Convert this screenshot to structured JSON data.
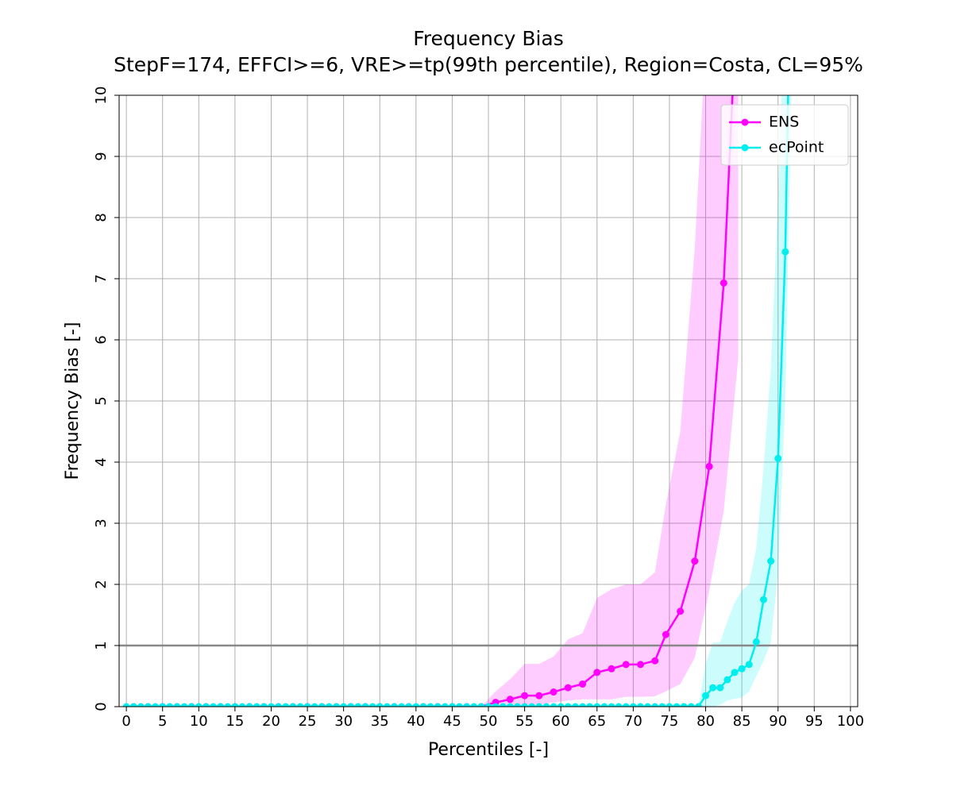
{
  "chart_data": {
    "type": "line",
    "title": "Frequency Bias",
    "subtitle": "StepF=174, EFFCI>=6, VRE>=tp(99th percentile), Region=Costa, CL=95%",
    "x_label": "Percentiles [-]",
    "y_label": "Frequency Bias [-]",
    "xlim": [
      -1,
      101
    ],
    "ylim": [
      0,
      10
    ],
    "xticks": [
      0,
      5,
      10,
      15,
      20,
      25,
      30,
      35,
      40,
      45,
      50,
      55,
      60,
      65,
      70,
      75,
      80,
      85,
      90,
      95,
      100
    ],
    "yticks": [
      0,
      1,
      2,
      3,
      4,
      5,
      6,
      7,
      8,
      9,
      10
    ],
    "grid": true,
    "legend": "upper right",
    "hline": 1,
    "hline_color": "#888888",
    "series": [
      {
        "name": "ENS",
        "color": "#ff00ff",
        "x": [
          1,
          3,
          5,
          7,
          9,
          11,
          13,
          15,
          17,
          19,
          21,
          23,
          25,
          27,
          29,
          31,
          33,
          35,
          37,
          39,
          41,
          43,
          45,
          47,
          49,
          51,
          53,
          55,
          57,
          59,
          61,
          63,
          65,
          67,
          69,
          71,
          73,
          74.5,
          76.5,
          78.5,
          80.5,
          82.5,
          84.5
        ],
        "values": [
          0,
          0,
          0,
          0,
          0,
          0,
          0,
          0,
          0,
          0,
          0,
          0,
          0,
          0,
          0,
          0,
          0,
          0,
          0,
          0,
          0,
          0,
          0,
          0,
          0,
          0.07,
          0.12,
          0.18,
          0.18,
          0.24,
          0.31,
          0.37,
          0.56,
          0.62,
          0.69,
          0.69,
          0.75,
          1.18,
          1.56,
          2.38,
          3.93,
          6.93,
          12
        ],
        "lower": [
          0,
          0,
          0,
          0,
          0,
          0,
          0,
          0,
          0,
          0,
          0,
          0,
          0,
          0,
          0,
          0,
          0,
          0,
          0,
          0,
          0,
          0,
          0,
          0,
          0,
          0,
          0,
          0.03,
          0.03,
          0.07,
          0.1,
          0.12,
          0.12,
          0.12,
          0.16,
          0.16,
          0.17,
          0.25,
          0.37,
          0.8,
          1.9,
          3.2,
          5.7
        ],
        "upper": [
          0,
          0,
          0,
          0,
          0,
          0,
          0,
          0,
          0,
          0,
          0,
          0,
          0,
          0,
          0,
          0,
          0,
          0,
          0,
          0,
          0,
          0,
          0,
          0,
          0,
          0.25,
          0.45,
          0.7,
          0.7,
          0.82,
          1.1,
          1.2,
          1.78,
          1.92,
          2.0,
          2.0,
          2.2,
          3.3,
          4.5,
          7.5,
          12,
          15,
          20
        ]
      },
      {
        "name": "ecPoint",
        "color": "#00eeee",
        "x": [
          0,
          1,
          2,
          3,
          4,
          5,
          6,
          7,
          8,
          9,
          10,
          11,
          12,
          13,
          14,
          15,
          16,
          17,
          18,
          19,
          20,
          21,
          22,
          23,
          24,
          25,
          26,
          27,
          28,
          29,
          30,
          31,
          32,
          33,
          34,
          35,
          36,
          37,
          38,
          39,
          40,
          41,
          42,
          43,
          44,
          45,
          46,
          47,
          48,
          49,
          50,
          51,
          52,
          53,
          54,
          55,
          56,
          57,
          58,
          59,
          60,
          61,
          62,
          63,
          64,
          65,
          66,
          67,
          68,
          69,
          70,
          71,
          72,
          73,
          74,
          75,
          76,
          77,
          78,
          79,
          80,
          81,
          82,
          83,
          84,
          85,
          86,
          87,
          88,
          89,
          90,
          91,
          92
        ],
        "values": [
          0,
          0,
          0,
          0,
          0,
          0,
          0,
          0,
          0,
          0,
          0,
          0,
          0,
          0,
          0,
          0,
          0,
          0,
          0,
          0,
          0,
          0,
          0,
          0,
          0,
          0,
          0,
          0,
          0,
          0,
          0,
          0,
          0,
          0,
          0,
          0,
          0,
          0,
          0,
          0,
          0,
          0,
          0,
          0,
          0,
          0,
          0,
          0,
          0,
          0,
          0,
          0,
          0,
          0,
          0,
          0,
          0,
          0,
          0,
          0,
          0,
          0,
          0,
          0,
          0,
          0,
          0,
          0,
          0,
          0,
          0,
          0,
          0,
          0,
          0,
          0,
          0,
          0,
          0,
          0,
          0.18,
          0.31,
          0.31,
          0.44,
          0.56,
          0.62,
          0.69,
          1.06,
          1.75,
          2.38,
          4.06,
          7.44,
          14
        ],
        "lower": [
          0,
          0,
          0,
          0,
          0,
          0,
          0,
          0,
          0,
          0,
          0,
          0,
          0,
          0,
          0,
          0,
          0,
          0,
          0,
          0,
          0,
          0,
          0,
          0,
          0,
          0,
          0,
          0,
          0,
          0,
          0,
          0,
          0,
          0,
          0,
          0,
          0,
          0,
          0,
          0,
          0,
          0,
          0,
          0,
          0,
          0,
          0,
          0,
          0,
          0,
          0,
          0,
          0,
          0,
          0,
          0,
          0,
          0,
          0,
          0,
          0,
          0,
          0,
          0,
          0,
          0,
          0,
          0,
          0,
          0,
          0,
          0,
          0,
          0,
          0,
          0,
          0,
          0,
          0,
          0,
          0,
          0,
          0.03,
          0.1,
          0.13,
          0.15,
          0.25,
          0.5,
          0.75,
          1.05,
          2.2,
          5.0,
          11
        ],
        "upper": [
          0,
          0,
          0,
          0,
          0,
          0,
          0,
          0,
          0,
          0,
          0,
          0,
          0,
          0,
          0,
          0,
          0,
          0,
          0,
          0,
          0,
          0,
          0,
          0,
          0,
          0,
          0,
          0,
          0,
          0,
          0,
          0,
          0,
          0,
          0,
          0,
          0,
          0,
          0,
          0,
          0,
          0,
          0,
          0,
          0,
          0,
          0,
          0,
          0,
          0,
          0,
          0,
          0,
          0,
          0,
          0,
          0,
          0,
          0,
          0,
          0,
          0,
          0,
          0,
          0,
          0,
          0,
          0,
          0,
          0,
          0,
          0,
          0,
          0,
          0,
          0,
          0,
          0,
          0,
          0,
          0.7,
          1.05,
          1.05,
          1.4,
          1.7,
          1.9,
          2.0,
          2.6,
          3.9,
          5.5,
          8.3,
          12,
          20
        ]
      }
    ]
  }
}
